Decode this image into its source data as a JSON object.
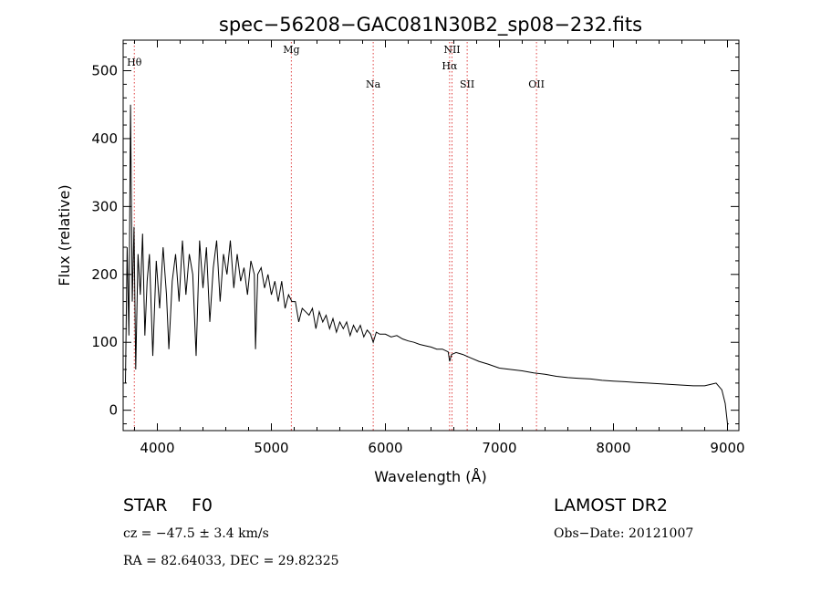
{
  "chart_data": {
    "type": "line",
    "title": "spec−56208−GAC081N30B2_sp08−232.fits",
    "xlabel": "Wavelength (Å)",
    "ylabel": "Flux (relative)",
    "xlim": [
      3700,
      9100
    ],
    "ylim": [
      -30,
      545
    ],
    "x_ticks": [
      4000,
      5000,
      6000,
      7000,
      8000,
      9000
    ],
    "y_ticks": [
      0,
      100,
      200,
      300,
      400,
      500
    ],
    "grid": false,
    "line_color": "#000000",
    "marker_color": "#e04040",
    "spectral_lines": [
      {
        "label": "Hθ",
        "wavelength": 3798
      },
      {
        "label": "Mg",
        "wavelength": 5175
      },
      {
        "label": "Na",
        "wavelength": 5893
      },
      {
        "label": "NII",
        "wavelength": 6584
      },
      {
        "label": "Hα",
        "wavelength": 6563
      },
      {
        "label": "SII",
        "wavelength": 6717
      },
      {
        "label": "OII",
        "wavelength": 7325
      }
    ],
    "series": [
      {
        "x": [
          3720,
          3735,
          3750,
          3765,
          3780,
          3795,
          3810,
          3830,
          3850,
          3870,
          3890,
          3910,
          3930,
          3960,
          3990,
          4020,
          4050,
          4080,
          4101,
          4130,
          4160,
          4190,
          4220,
          4250,
          4280,
          4310,
          4340,
          4370,
          4400,
          4430,
          4460,
          4490,
          4520,
          4550,
          4580,
          4610,
          4640,
          4670,
          4700,
          4730,
          4760,
          4790,
          4820,
          4850,
          4861,
          4880,
          4910,
          4940,
          4970,
          5000,
          5030,
          5060,
          5090,
          5120,
          5150,
          5180,
          5210,
          5240,
          5270,
          5300,
          5330,
          5360,
          5390,
          5420,
          5450,
          5480,
          5510,
          5540,
          5570,
          5600,
          5630,
          5660,
          5690,
          5720,
          5750,
          5780,
          5810,
          5840,
          5870,
          5893,
          5920,
          5950,
          6000,
          6050,
          6100,
          6150,
          6200,
          6250,
          6300,
          6350,
          6400,
          6450,
          6500,
          6550,
          6563,
          6580,
          6620,
          6680,
          6750,
          6820,
          6900,
          7000,
          7100,
          7200,
          7300,
          7400,
          7500,
          7600,
          7700,
          7800,
          7900,
          8000,
          8100,
          8200,
          8300,
          8400,
          8500,
          8600,
          8700,
          8800,
          8850,
          8900,
          8950,
          8980,
          9000,
          9010
        ],
        "y": [
          40,
          240,
          110,
          450,
          160,
          270,
          60,
          230,
          170,
          260,
          110,
          190,
          230,
          80,
          220,
          150,
          240,
          170,
          90,
          190,
          230,
          160,
          250,
          170,
          230,
          200,
          80,
          250,
          180,
          240,
          130,
          210,
          250,
          160,
          230,
          200,
          250,
          180,
          230,
          190,
          210,
          170,
          220,
          200,
          90,
          200,
          210,
          180,
          200,
          170,
          190,
          160,
          190,
          150,
          170,
          160,
          160,
          130,
          150,
          145,
          140,
          150,
          120,
          145,
          130,
          140,
          120,
          135,
          115,
          130,
          120,
          130,
          110,
          125,
          115,
          125,
          108,
          118,
          112,
          100,
          115,
          112,
          112,
          108,
          110,
          105,
          102,
          100,
          97,
          95,
          93,
          90,
          90,
          86,
          72,
          82,
          85,
          82,
          77,
          72,
          68,
          62,
          60,
          58,
          55,
          53,
          50,
          48,
          47,
          46,
          44,
          43,
          42,
          41,
          40,
          39,
          38,
          37,
          36,
          36,
          38,
          40,
          30,
          10,
          -20,
          -20
        ]
      }
    ]
  },
  "info": {
    "object_class": "STAR",
    "subclass": "F0",
    "survey": "LAMOST DR2",
    "redshift": "cz = −47.5 ± 3.4 km/s",
    "obs_date": "Obs−Date: 20121007",
    "coordinates": "RA =  82.64033, DEC =  29.82325"
  }
}
